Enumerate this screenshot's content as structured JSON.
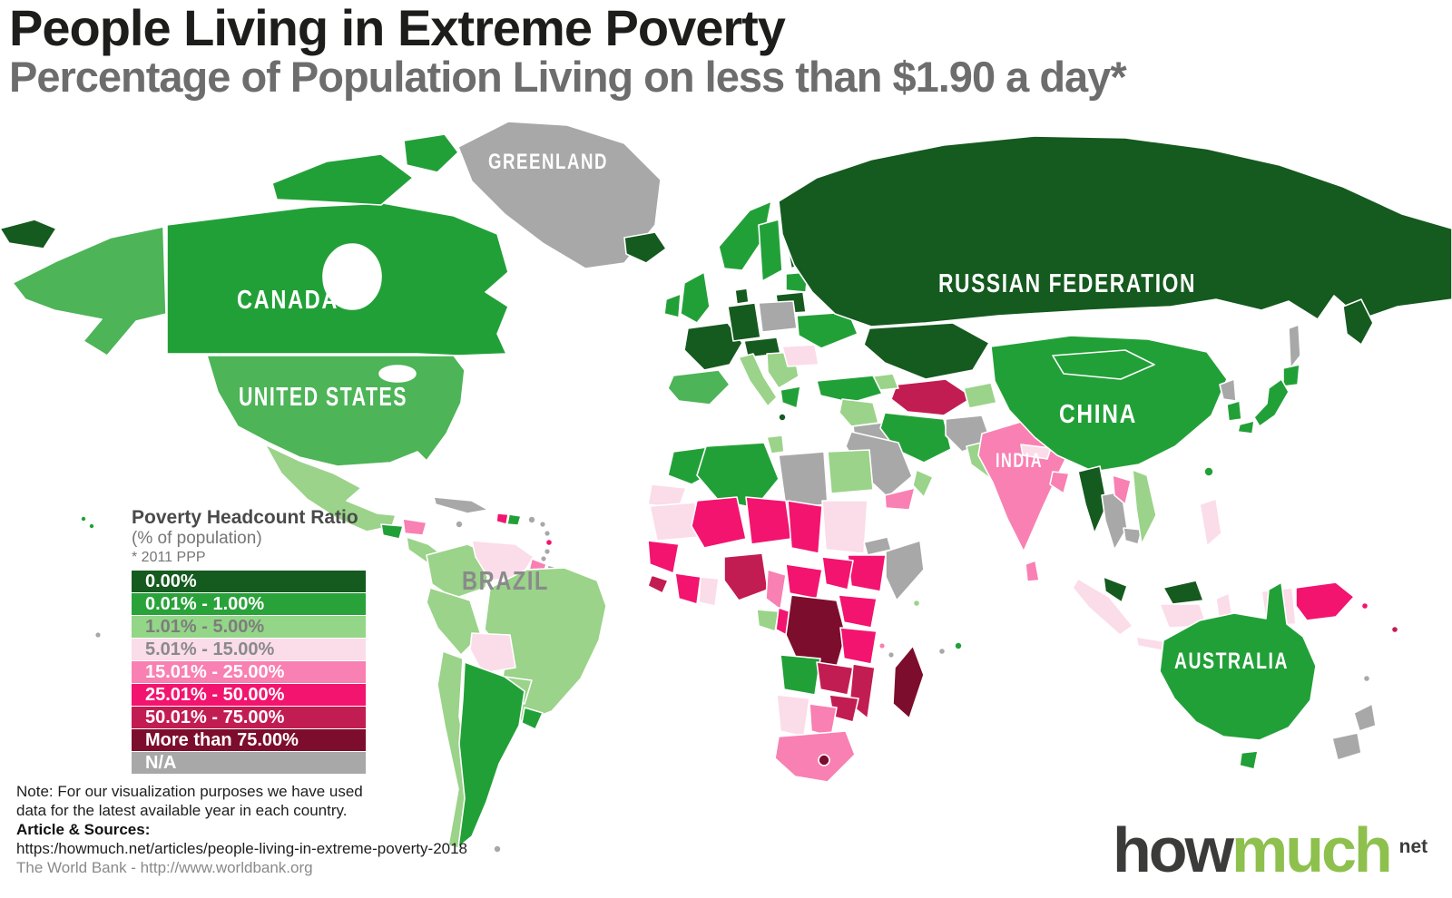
{
  "header": {
    "title": "People Living in Extreme Poverty",
    "subtitle": "Percentage of Population Living on less than $1.90 a day*"
  },
  "legend": {
    "title": "Poverty Headcount Ratio",
    "subtitle": "(% of population)",
    "ppp": "* 2011 PPP",
    "items": [
      {
        "label": "0.00%",
        "color": "#155a1f",
        "text_color": "#ffffff"
      },
      {
        "label": "0.01% - 1.00%",
        "color": "#2aa23a",
        "text_color": "#ffffff"
      },
      {
        "label": "1.01% - 5.00%",
        "color": "#93d687",
        "text_color": "#7d7d7d"
      },
      {
        "label": "5.01% - 15.00%",
        "color": "#fbdce9",
        "text_color": "#8a8a8a"
      },
      {
        "label": "15.01% - 25.00%",
        "color": "#f980b2",
        "text_color": "#ffffff"
      },
      {
        "label": "25.01% - 50.00%",
        "color": "#f2146f",
        "text_color": "#ffffff"
      },
      {
        "label": "50.01% - 75.00%",
        "color": "#c21d52",
        "text_color": "#ffffff"
      },
      {
        "label": "More than 75.00%",
        "color": "#7d0d2c",
        "text_color": "#ffffff"
      },
      {
        "label": "N/A",
        "color": "#a8a8a8",
        "text_color": "#ffffff"
      }
    ]
  },
  "map": {
    "labels": {
      "greenland": "GREENLAND",
      "canada": "CANADA",
      "united_states": "UNITED STATES",
      "russia": "RUSSIAN FEDERATION",
      "china": "CHINA",
      "india": "INDIA",
      "brazil": "BRAZIL",
      "australia": "AUSTRALIA"
    },
    "label_colors": {
      "default": "#ffffff",
      "brazil": "#8a8a8a"
    },
    "palette": {
      "cat0": "#155a1f",
      "cat1": "#22a038",
      "cat1b": "#4db457",
      "cat2": "#9ad389",
      "cat3": "#fbdce9",
      "cat4": "#f980b2",
      "cat5": "#f2146f",
      "cat6": "#c21d52",
      "cat7": "#7d0d2c",
      "na": "#a8a8a8"
    },
    "regions": {
      "chukotka-wrap": "cat0",
      "alaska": "cat1b",
      "canada": "cat1",
      "canada-arctic1": "cat1",
      "canada-arctic2": "cat1",
      "greenland": "na",
      "iceland": "cat0",
      "usa": "cat1b",
      "mexico": "cat2",
      "guatemala": "cat1",
      "honduras": "cat4",
      "nicaragua-panama": "cat2",
      "cuba": "na",
      "jamaica": "na",
      "haiti": "cat5",
      "dominican": "cat1",
      "puertorico": "na",
      "antilles1": "na",
      "antilles2": "na",
      "antilles3": "na",
      "stlucia": "cat5",
      "trinidad": "na",
      "colombia": "cat2",
      "venezuela": "cat3",
      "guyana": "cat4",
      "suriname": "na",
      "frenchguiana": "cat1",
      "brazil": "cat2",
      "peru": "cat2",
      "bolivia": "cat3",
      "paraguay": "cat2",
      "chile": "cat2",
      "argentina": "cat1",
      "uruguay": "cat1",
      "falkland": "na",
      "norway": "cat1",
      "sweden": "cat1",
      "finland": "cat0",
      "denmark": "cat0",
      "baltics": "cat1",
      "uk": "cat1",
      "ireland": "cat1",
      "france": "cat0",
      "iberia": "cat1b",
      "germany": "cat0",
      "poland": "na",
      "czech-austria": "cat0",
      "italy": "cat2",
      "balkans": "cat2",
      "romania": "cat3",
      "ukraine": "cat1",
      "belarus": "cat0",
      "greece": "cat1",
      "turkey": "cat1",
      "malta": "cat0",
      "russia": "cat0",
      "kamchatka": "cat0",
      "sakhalin": "na",
      "kazakhstan": "cat0",
      "uzbek-turkmen": "cat6",
      "kyrgyz": "cat2",
      "caucasus": "cat2",
      "syria-levant": "cat2",
      "iraq": "na",
      "iran": "cat1",
      "afghanistan": "na",
      "pakistan": "cat2",
      "saudi": "na",
      "yemen": "cat4",
      "oman": "cat2",
      "india": "cat4",
      "nepal": "cat3",
      "bangladesh": "cat4",
      "srilanka": "cat4",
      "china": "cat1",
      "mongolia": "cat1",
      "nkorea": "na",
      "skorea": "cat1",
      "japan": "cat1",
      "hokkaido": "cat1",
      "kyushu": "cat1",
      "taiwan": "cat1",
      "myanmar": "cat0",
      "thailand": "na",
      "laos": "cat4",
      "cambodia": "na",
      "vietnam": "cat2",
      "malaysia-pen": "cat0",
      "malaysia-borneo": "cat0",
      "sumatra": "cat3",
      "java": "cat3",
      "kalimantan": "cat3",
      "sulawesi": "cat3",
      "westpapua": "cat3",
      "png": "cat5",
      "philippines": "cat3",
      "morocco": "cat1",
      "wsahara": "cat3",
      "algeria": "cat1",
      "tunisia": "cat2",
      "libya": "na",
      "egypt": "cat2",
      "mauritania": "cat3",
      "mali": "cat5",
      "niger": "cat5",
      "chad": "cat5",
      "sudan": "cat3",
      "eritrea": "na",
      "ethiopia": "cat5",
      "somalia": "na",
      "senegal-guinea": "cat5",
      "sierra-liberia": "cat6",
      "ivorycoast": "cat5",
      "ghana": "cat3",
      "nigeria": "cat6",
      "cameroon": "cat4",
      "car": "cat5",
      "ssudan": "cat5",
      "gabon": "cat2",
      "congo": "cat5",
      "drc": "cat7",
      "uganda-kenya": "cat5",
      "tanzania": "cat5",
      "angola": "cat1",
      "zambia": "cat6",
      "mozambique": "cat6",
      "zimbabwe": "cat6",
      "namibia": "cat3",
      "botswana": "cat4",
      "southafrica": "cat4",
      "lesotho": "cat7",
      "madagascar": "cat7",
      "comoros": "cat4",
      "mayotte": "na",
      "seychelles": "cat2",
      "mauritius": "cat1",
      "reunion": "na",
      "australia": "cat1",
      "tasmania": "cat1",
      "nz-north": "na",
      "nz-south": "na",
      "solomon": "cat5",
      "fiji": "cat6",
      "newcaledonia": "na",
      "hawaii1": "cat1",
      "hawaii2": "cat1",
      "pacific-dot": "na"
    }
  },
  "notes": {
    "line1": "Note: For our visualization purposes we have used",
    "line2": "data for the latest available year in each country.",
    "sources_label": "Article & Sources:",
    "source_url": "https:/howmuch.net/articles/people-living-in-extreme-poverty-2018",
    "source_bank": "The World Bank - http://www.worldbank.org"
  },
  "logo": {
    "part1": "how",
    "part2": "much",
    "tld": "net",
    "green": "#8ec04e",
    "dark": "#3b3b39"
  }
}
